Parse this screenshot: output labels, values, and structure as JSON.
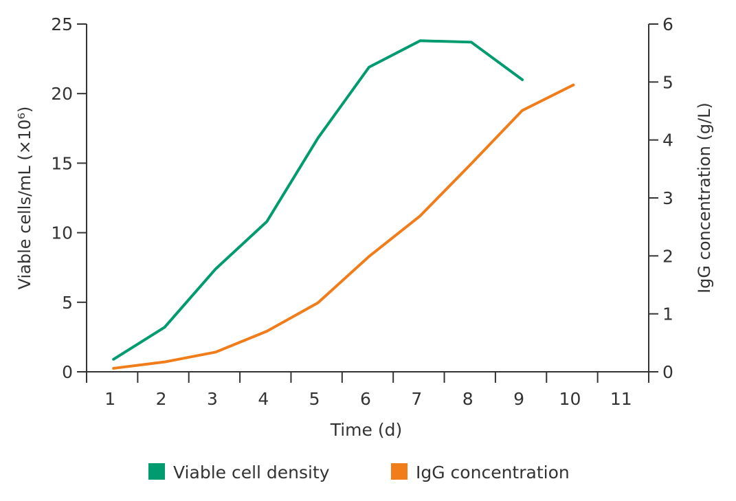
{
  "chart_data": {
    "type": "line",
    "title": "",
    "xlabel": "Time (d)",
    "ylabel_left": "Viable cells/mL (×10⁶)",
    "ylabel_right": "IgG concentration (g/L)",
    "categories": [
      "1",
      "2",
      "3",
      "4",
      "5",
      "6",
      "7",
      "8",
      "9",
      "10",
      "11"
    ],
    "ylim_left": [
      0,
      25
    ],
    "yticks_left": [
      "0",
      "5",
      "10",
      "15",
      "20",
      "25"
    ],
    "ylim_right": [
      0,
      6
    ],
    "yticks_right": [
      "0",
      "1",
      "2",
      "3",
      "4",
      "5",
      "6"
    ],
    "grid": false,
    "legend_position": "bottom",
    "series": [
      {
        "name": "Viable cell density",
        "axis": "left",
        "color": "#009B6E",
        "x": [
          1,
          2,
          3,
          4,
          5,
          6,
          7,
          8,
          9
        ],
        "values": [
          0.9,
          3.2,
          7.4,
          10.8,
          16.8,
          21.9,
          23.8,
          23.7,
          21.0
        ]
      },
      {
        "name": "IgG concentration",
        "axis": "right",
        "color": "#F07D1A",
        "x": [
          1,
          2,
          3,
          4,
          5,
          6,
          7,
          8,
          9,
          10
        ],
        "values": [
          0.06,
          0.17,
          0.34,
          0.7,
          1.19,
          1.99,
          2.69,
          3.59,
          4.51,
          4.95
        ]
      }
    ]
  }
}
